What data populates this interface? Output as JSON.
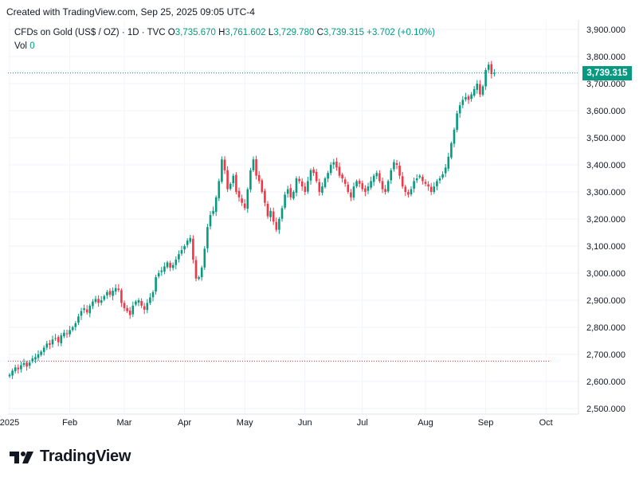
{
  "header": {
    "created_text": "Created with TradingView.com, Sep 25, 2025 09:05 UTC-4"
  },
  "legend": {
    "symbol": "CFDs on Gold (US$ / OZ) · 1D · TVC",
    "o_label": "O",
    "o_value": "3,735.670",
    "h_label": "H",
    "h_value": "3,761.602",
    "l_label": "L",
    "l_value": "3,729.780",
    "c_label": "C",
    "c_value": "3,739.315",
    "change": "+3.702 (+0.10%)",
    "vol_label": "Vol",
    "vol_value": "0"
  },
  "price_badge": "3,739.315",
  "logo": {
    "text": "TradingView",
    "icon": "tradingview-logo-icon"
  },
  "colors": {
    "up": "#089981",
    "down": "#f23645",
    "grid": "#f0f3fa",
    "text": "#131722",
    "last_line": "#089981",
    "ref_line": "#f23645"
  },
  "chart_data": {
    "type": "candlestick",
    "title": "CFDs on Gold (US$ / OZ)",
    "interval": "1D",
    "ylim": [
      2500,
      3900
    ],
    "y_ticks": [
      {
        "value": 2500,
        "label": "2,500.000"
      },
      {
        "value": 2600,
        "label": "2,600.000"
      },
      {
        "value": 2700,
        "label": "2,700.000"
      },
      {
        "value": 2800,
        "label": "2,800.000"
      },
      {
        "value": 2900,
        "label": "2,900.000"
      },
      {
        "value": 3000,
        "label": "3,000.000"
      },
      {
        "value": 3100,
        "label": "3,100.000"
      },
      {
        "value": 3200,
        "label": "3,200.000"
      },
      {
        "value": 3300,
        "label": "3,300.000"
      },
      {
        "value": 3400,
        "label": "3,400.000"
      },
      {
        "value": 3500,
        "label": "3,500.000"
      },
      {
        "value": 3600,
        "label": "3,600.000"
      },
      {
        "value": 3700,
        "label": "3,700.000"
      },
      {
        "value": 3800,
        "label": "3,800.000"
      },
      {
        "value": 3900,
        "label": "3,900.000"
      }
    ],
    "x_ticks": [
      {
        "index": 0,
        "label": "2025"
      },
      {
        "index": 21,
        "label": "Feb"
      },
      {
        "index": 40,
        "label": "Mar"
      },
      {
        "index": 61,
        "label": "Apr"
      },
      {
        "index": 82,
        "label": "May"
      },
      {
        "index": 103,
        "label": "Jun"
      },
      {
        "index": 123,
        "label": "Jul"
      },
      {
        "index": 145,
        "label": "Aug"
      },
      {
        "index": 166,
        "label": "Sep"
      },
      {
        "index": 187,
        "label": "Oct"
      }
    ],
    "last_price": 3739.315,
    "ref_price": 2675,
    "closes": [
      2625,
      2640,
      2652,
      2645,
      2660,
      2668,
      2655,
      2670,
      2685,
      2690,
      2700,
      2710,
      2725,
      2740,
      2735,
      2755,
      2760,
      2745,
      2770,
      2780,
      2775,
      2790,
      2800,
      2815,
      2840,
      2860,
      2870,
      2855,
      2880,
      2895,
      2905,
      2890,
      2900,
      2915,
      2930,
      2920,
      2935,
      2945,
      2938,
      2890,
      2870,
      2860,
      2845,
      2880,
      2895,
      2900,
      2880,
      2865,
      2890,
      2910,
      2930,
      2985,
      3000,
      3010,
      3025,
      3040,
      3020,
      3030,
      3050,
      3070,
      3085,
      3100,
      3120,
      3130,
      3050,
      2980,
      2985,
      3020,
      3090,
      3170,
      3215,
      3230,
      3280,
      3340,
      3420,
      3380,
      3310,
      3330,
      3360,
      3300,
      3280,
      3260,
      3240,
      3310,
      3380,
      3420,
      3360,
      3340,
      3300,
      3260,
      3210,
      3230,
      3190,
      3160,
      3200,
      3240,
      3290,
      3310,
      3280,
      3300,
      3350,
      3340,
      3320,
      3300,
      3340,
      3380,
      3370,
      3340,
      3300,
      3320,
      3350,
      3370,
      3400,
      3410,
      3390,
      3360,
      3350,
      3330,
      3300,
      3280,
      3320,
      3340,
      3330,
      3310,
      3300,
      3320,
      3340,
      3360,
      3370,
      3340,
      3310,
      3300,
      3340,
      3380,
      3410,
      3400,
      3360,
      3320,
      3300,
      3290,
      3310,
      3340,
      3350,
      3360,
      3340,
      3330,
      3320,
      3300,
      3320,
      3340,
      3350,
      3365,
      3390,
      3430,
      3480,
      3530,
      3590,
      3620,
      3640,
      3650,
      3640,
      3660,
      3680,
      3700,
      3660,
      3690,
      3750,
      3770,
      3735,
      3739
    ]
  }
}
